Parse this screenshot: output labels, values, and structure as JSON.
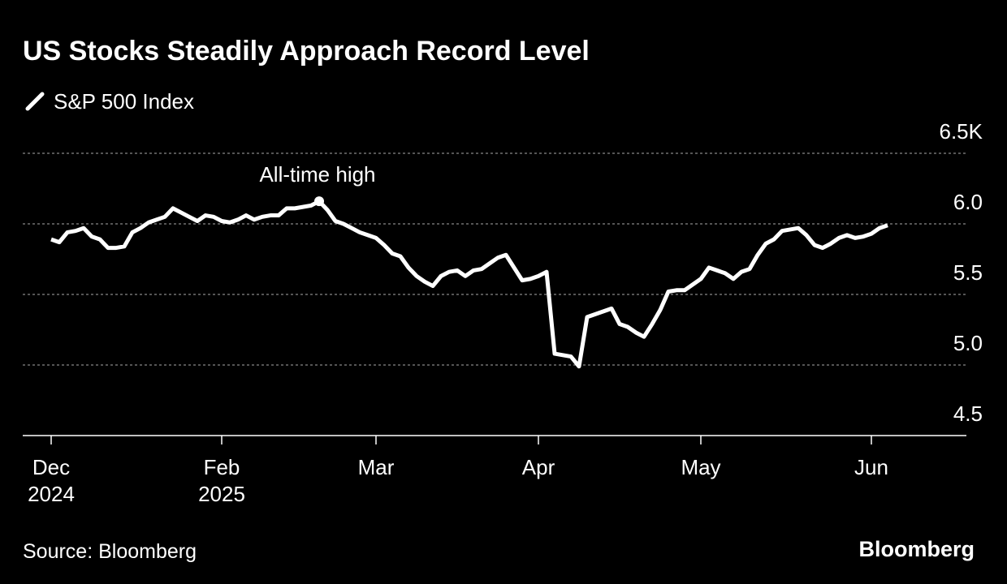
{
  "chart_data": {
    "type": "line",
    "title": "US Stocks Steadily Approach Record Level",
    "source": "Source: Bloomberg",
    "brand": "Bloomberg",
    "annotation": "All-time high",
    "categories": [
      "Dec\n2024",
      null,
      null,
      null,
      null,
      null,
      null,
      null,
      null,
      null,
      null,
      null,
      null,
      null,
      null,
      null,
      null,
      null,
      null,
      null,
      null,
      "Feb\n2025",
      null,
      null,
      null,
      null,
      null,
      null,
      null,
      null,
      null,
      null,
      null,
      null,
      null,
      null,
      null,
      null,
      null,
      null,
      "Mar",
      null,
      null,
      null,
      null,
      null,
      null,
      null,
      null,
      null,
      null,
      null,
      null,
      null,
      null,
      null,
      null,
      null,
      null,
      null,
      "Apr",
      null,
      null,
      null,
      null,
      null,
      null,
      null,
      null,
      null,
      null,
      null,
      null,
      null,
      null,
      null,
      null,
      null,
      null,
      null,
      "May",
      null,
      null,
      null,
      null,
      null,
      null,
      null,
      null,
      null,
      null,
      null,
      null,
      null,
      null,
      null,
      null,
      null,
      null,
      null,
      null,
      "Jun",
      null,
      null
    ],
    "series": [
      {
        "name": "S&P 500 Index",
        "color": "#ffffff",
        "values": [
          5.89,
          5.87,
          5.94,
          5.95,
          5.97,
          5.91,
          5.89,
          5.83,
          5.83,
          5.84,
          5.94,
          5.97,
          6.01,
          6.03,
          6.05,
          6.11,
          6.08,
          6.05,
          6.02,
          6.06,
          6.05,
          6.02,
          6.01,
          6.03,
          6.06,
          6.03,
          6.05,
          6.06,
          6.06,
          6.11,
          6.11,
          6.12,
          6.13,
          6.16,
          6.1,
          6.02,
          6.0,
          5.97,
          5.94,
          5.92,
          5.9,
          5.85,
          5.79,
          5.77,
          5.69,
          5.63,
          5.59,
          5.56,
          5.63,
          5.66,
          5.67,
          5.63,
          5.67,
          5.68,
          5.72,
          5.76,
          5.78,
          5.69,
          5.6,
          5.61,
          5.63,
          5.66,
          5.08,
          5.07,
          5.06,
          4.99,
          5.34,
          5.36,
          5.38,
          5.4,
          5.29,
          5.27,
          5.23,
          5.2,
          5.29,
          5.39,
          5.52,
          5.53,
          5.53,
          5.57,
          5.61,
          5.69,
          5.67,
          5.65,
          5.61,
          5.66,
          5.68,
          5.78,
          5.86,
          5.89,
          5.95,
          5.96,
          5.97,
          5.92,
          5.85,
          5.83,
          5.86,
          5.9,
          5.92,
          5.9,
          5.91,
          5.93,
          5.97,
          5.99
        ]
      }
    ],
    "ylim": [
      4.5,
      6.5
    ],
    "yticks": [
      4.5,
      {
        "value": 5,
        "label": "5.0"
      },
      5.5,
      {
        "value": 6,
        "label": "6.0"
      },
      {
        "value": 6.5,
        "label": "6.5K"
      }
    ],
    "grid": true
  }
}
